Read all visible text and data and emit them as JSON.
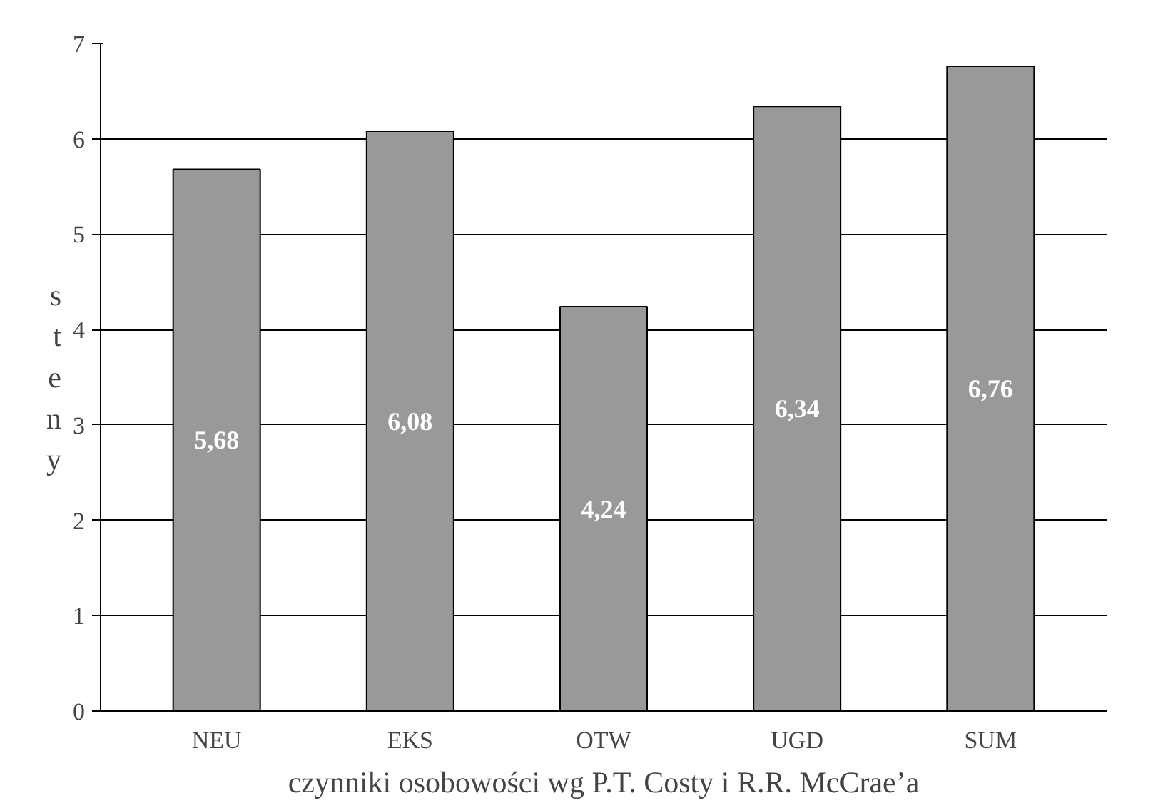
{
  "chart_data": {
    "type": "bar",
    "xlabel": "czynniki osobowości wg P.T. Costy i R.R. McCrae’a",
    "ylabel": "steny",
    "categories": [
      "NEU",
      "EKS",
      "OTW",
      "UGD",
      "SUM"
    ],
    "values": [
      5.68,
      6.08,
      4.24,
      6.34,
      6.76
    ],
    "color": "#999999",
    "ylim": [
      0,
      7
    ],
    "yticks": [
      0,
      1,
      2,
      3,
      4,
      5,
      6,
      7
    ],
    "grid": "y",
    "value_labels": [
      "5,68",
      "6,08",
      "4,24",
      "6,34",
      "6,76"
    ]
  }
}
